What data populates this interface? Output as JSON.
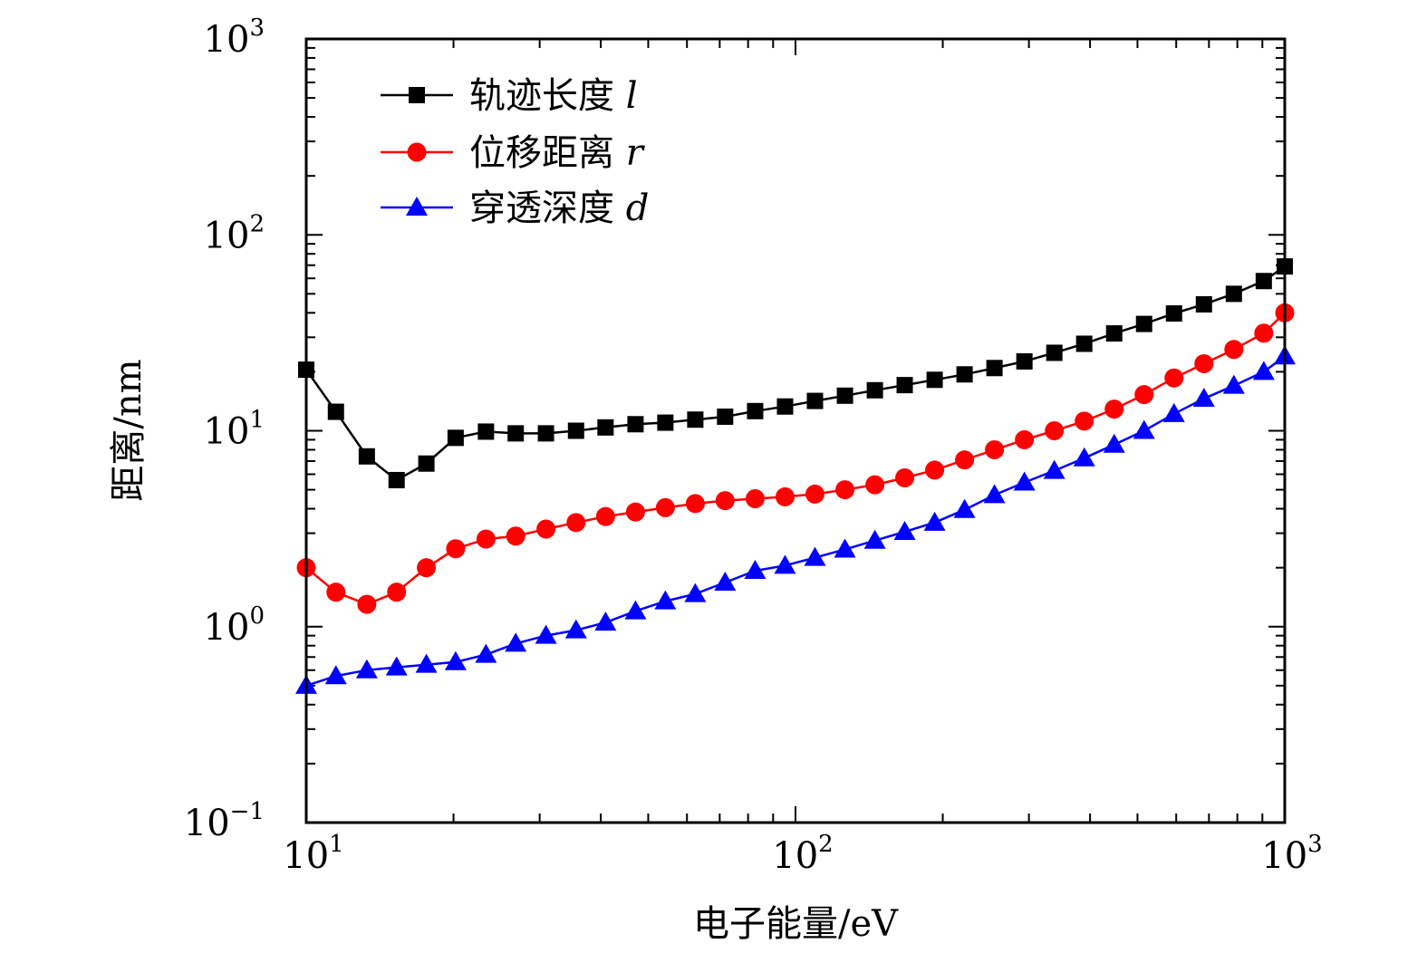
{
  "chart_data": {
    "type": "line",
    "title": "",
    "xlabel": "电子能量/eV",
    "ylabel": "距离/nm",
    "xscale": "log",
    "yscale": "log",
    "xlim": [
      10,
      1000
    ],
    "ylim": [
      0.1,
      1000
    ],
    "x_ticks": [
      {
        "base": "10",
        "exp": "1",
        "value": 10
      },
      {
        "base": "10",
        "exp": "2",
        "value": 100
      },
      {
        "base": "10",
        "exp": "3",
        "value": 1000
      }
    ],
    "y_ticks": [
      {
        "base": "10",
        "exp": "−1",
        "value": 0.1
      },
      {
        "base": "10",
        "exp": "0",
        "value": 1
      },
      {
        "base": "10",
        "exp": "1",
        "value": 10
      },
      {
        "base": "10",
        "exp": "2",
        "value": 100
      },
      {
        "base": "10",
        "exp": "3",
        "value": 1000
      }
    ],
    "legend_position": "top-left",
    "x": [
      10,
      11.5,
      13.3,
      15.3,
      17.6,
      20.2,
      23.3,
      26.8,
      30.9,
      35.6,
      40.9,
      47.1,
      54.2,
      62.4,
      71.8,
      82.7,
      95.2,
      109.6,
      126.2,
      145.3,
      167.2,
      192.5,
      221.6,
      255.1,
      293.7,
      338.1,
      389.2,
      448.1,
      515.8,
      593.8,
      683.6,
      787,
      906,
      1000
    ],
    "series": [
      {
        "name": "轨迹长度",
        "symbol": "l",
        "color": "#000000",
        "marker": "square",
        "values": [
          20.5,
          12.5,
          7.4,
          5.6,
          6.8,
          9.2,
          9.9,
          9.7,
          9.7,
          10.0,
          10.4,
          10.8,
          11.0,
          11.4,
          11.8,
          12.6,
          13.3,
          14.2,
          15.1,
          16.1,
          17.1,
          18.2,
          19.4,
          20.9,
          22.6,
          25.0,
          27.8,
          31.4,
          35.1,
          39.7,
          44.2,
          50.0,
          58.1,
          69.0
        ]
      },
      {
        "name": "位移距离",
        "symbol": "r",
        "color": "#ff0000",
        "marker": "circle",
        "values": [
          2.0,
          1.5,
          1.3,
          1.5,
          2.0,
          2.5,
          2.8,
          2.9,
          3.15,
          3.4,
          3.65,
          3.85,
          4.05,
          4.25,
          4.4,
          4.5,
          4.6,
          4.75,
          5.0,
          5.3,
          5.75,
          6.3,
          7.1,
          8.0,
          9.0,
          10.0,
          11.2,
          12.9,
          15.3,
          18.6,
          22.0,
          26.0,
          31.5,
          40.0
        ]
      },
      {
        "name": "穿透深度",
        "symbol": "d",
        "color": "#0000ff",
        "marker": "triangle",
        "values": [
          0.5,
          0.56,
          0.6,
          0.62,
          0.64,
          0.66,
          0.72,
          0.82,
          0.9,
          0.96,
          1.05,
          1.2,
          1.35,
          1.47,
          1.68,
          1.93,
          2.05,
          2.25,
          2.48,
          2.75,
          3.05,
          3.4,
          3.95,
          4.7,
          5.45,
          6.25,
          7.25,
          8.5,
          10.0,
          12.2,
          14.6,
          17.0,
          20.0,
          24.0
        ]
      }
    ]
  }
}
